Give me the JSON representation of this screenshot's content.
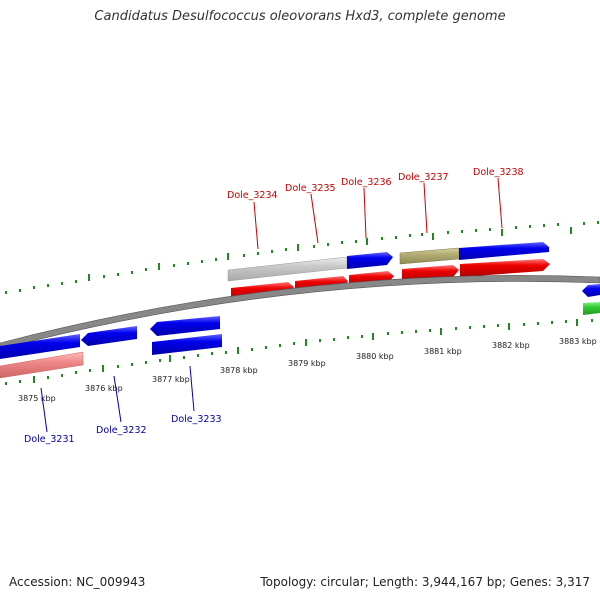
{
  "title": "Candidatus Desulfococcus oleovorans Hxd3, complete genome",
  "footer": {
    "accession": "Accession: NC_009943",
    "topology": "Topology: circular; Length: 3,944,167 bp; Genes: 3,317"
  },
  "colors": {
    "forward_cds": "#0000ee",
    "reverse_cds": "#ee0000",
    "pseudogene": "#ee8888",
    "rna": "#33cc33",
    "gray_feature": "#c8c8c8",
    "olive_feature": "#b3ad73",
    "tick": "#228822",
    "backbone": "#888888",
    "top_label": "#cc0000",
    "bottom_label": "#0000aa"
  },
  "kbp_labels": [
    "3875 kbp",
    "3876 kbp",
    "3877 kbp",
    "3878 kbp",
    "3879 kbp",
    "3880 kbp",
    "3881 kbp",
    "3882 kbp",
    "3883 kbp"
  ],
  "gene_labels_top": [
    "Dole_3234",
    "Dole_3235",
    "Dole_3236",
    "Dole_3237",
    "Dole_3238"
  ],
  "gene_labels_bottom": [
    "Dole_3231",
    "Dole_3232",
    "Dole_3233"
  ]
}
